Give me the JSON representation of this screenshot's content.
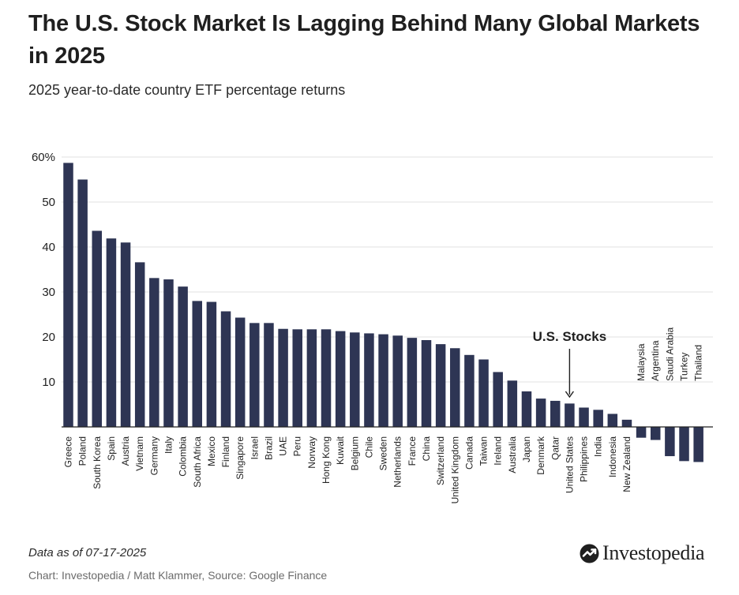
{
  "header": {
    "title": "The U.S. Stock Market Is Lagging Behind Many Global Markets in 2025",
    "subtitle": "2025 year-to-date country ETF percentage returns"
  },
  "footer": {
    "note": "Data as of 07-17-2025",
    "credit": "Chart: Investopedia / Matt Klammer, Source: Google Finance",
    "brand": "Investopedia"
  },
  "colors": {
    "bar": "#2e3554",
    "grid": "#e1e1e1",
    "axis": "#222222",
    "text": "#222222"
  },
  "chart_data": {
    "type": "bar",
    "categories": [
      "Greece",
      "Poland",
      "South Korea",
      "Spain",
      "Austria",
      "Vietnam",
      "Germany",
      "Italy",
      "Colombia",
      "South Africa",
      "Mexico",
      "Finland",
      "Singapore",
      "Israel",
      "Brazil",
      "UAE",
      "Peru",
      "Norway",
      "Hong Kong",
      "Kuwait",
      "Belgium",
      "Chile",
      "Sweden",
      "Netherlands",
      "France",
      "China",
      "Switzerland",
      "United Kingdom",
      "Canada",
      "Taiwan",
      "Ireland",
      "Australia",
      "Japan",
      "Denmark",
      "Qatar",
      "United States",
      "Philippines",
      "India",
      "Indonesia",
      "New Zealand",
      "Malaysia",
      "Argentina",
      "Saudi Arabia",
      "Turkey",
      "Thailand"
    ],
    "values": [
      58.7,
      55.0,
      43.6,
      41.9,
      41.0,
      36.6,
      33.1,
      32.8,
      31.2,
      28.0,
      27.8,
      25.7,
      24.3,
      23.1,
      23.1,
      21.8,
      21.7,
      21.7,
      21.7,
      21.3,
      21.0,
      20.8,
      20.6,
      20.3,
      19.8,
      19.3,
      18.4,
      17.5,
      16.0,
      15.0,
      12.2,
      10.3,
      7.9,
      6.3,
      5.8,
      5.2,
      4.3,
      3.8,
      2.9,
      1.6,
      -2.4,
      -2.9,
      -6.5,
      -7.6,
      -7.8
    ],
    "yticks": [
      {
        "value": 10,
        "label": "10"
      },
      {
        "value": 20,
        "label": "20"
      },
      {
        "value": 30,
        "label": "30"
      },
      {
        "value": 40,
        "label": "40"
      },
      {
        "value": 50,
        "label": "50"
      },
      {
        "value": 60,
        "label": "60%"
      }
    ],
    "ylim": [
      -8,
      60
    ],
    "grid": true,
    "annotation": {
      "text": "U.S. Stocks",
      "target": "United States"
    }
  }
}
